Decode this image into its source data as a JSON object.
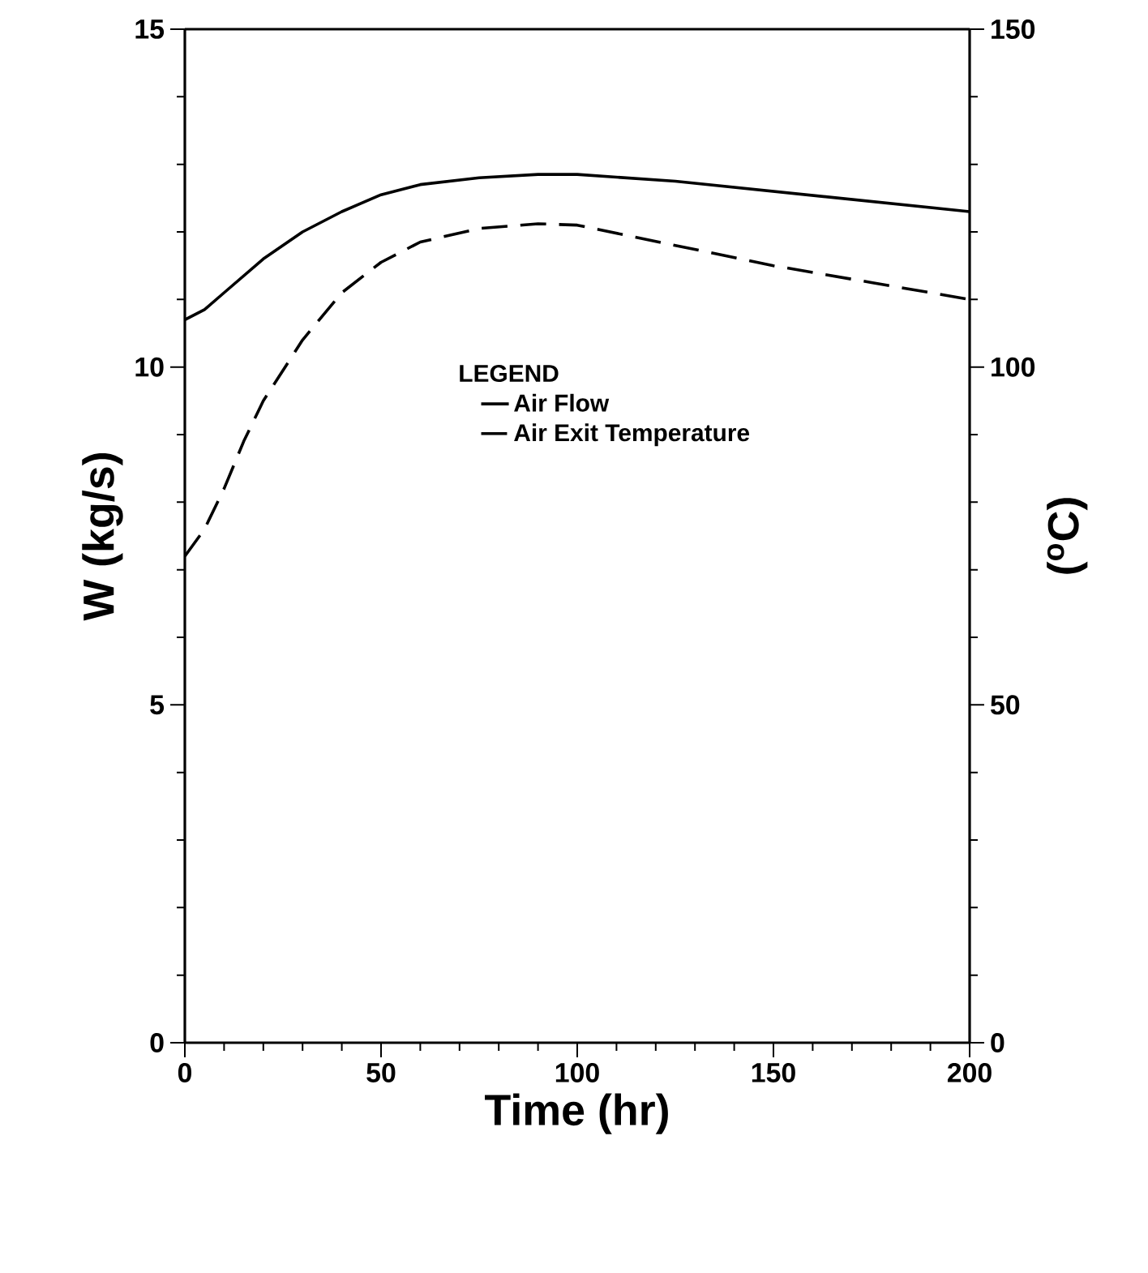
{
  "chart_data": {
    "type": "line",
    "xlabel": "Time  (hr)",
    "ylabel": "W (kg/s)",
    "y2label": "($^{o}$C)",
    "legend_title": "LEGEND",
    "legend": "center",
    "grid": false,
    "marker": "none",
    "xlim": [
      0,
      200
    ],
    "xticks": [
      0,
      50,
      100,
      150,
      200
    ],
    "ylim": [
      0,
      15
    ],
    "yticks": [
      0,
      5,
      10,
      15
    ],
    "y2lim": [
      0,
      150
    ],
    "y2ticks": [
      0,
      50,
      100,
      150
    ],
    "series": [
      {
        "name": "Air Flow",
        "color": "#000000",
        "line_style": "solid",
        "x": [
          0,
          5,
          10,
          20,
          30,
          40,
          50,
          60,
          75,
          90,
          100,
          125,
          150,
          175,
          200
        ],
        "values": [
          10.7,
          10.85,
          11.1,
          11.6,
          12.0,
          12.3,
          12.55,
          12.7,
          12.8,
          12.85,
          12.85,
          12.75,
          12.6,
          12.45,
          12.3
        ]
      },
      {
        "name": "Air Exit Temperature",
        "color": "#000000",
        "line_style": "dashed",
        "axis": "y2",
        "x": [
          0,
          5,
          10,
          15,
          20,
          30,
          40,
          50,
          60,
          75,
          90,
          100,
          125,
          150,
          175,
          200
        ],
        "values": [
          72,
          76,
          82,
          89,
          95,
          104,
          111,
          115.5,
          118.5,
          120.5,
          121.2,
          121,
          118,
          115,
          112.5,
          110
        ]
      }
    ]
  }
}
